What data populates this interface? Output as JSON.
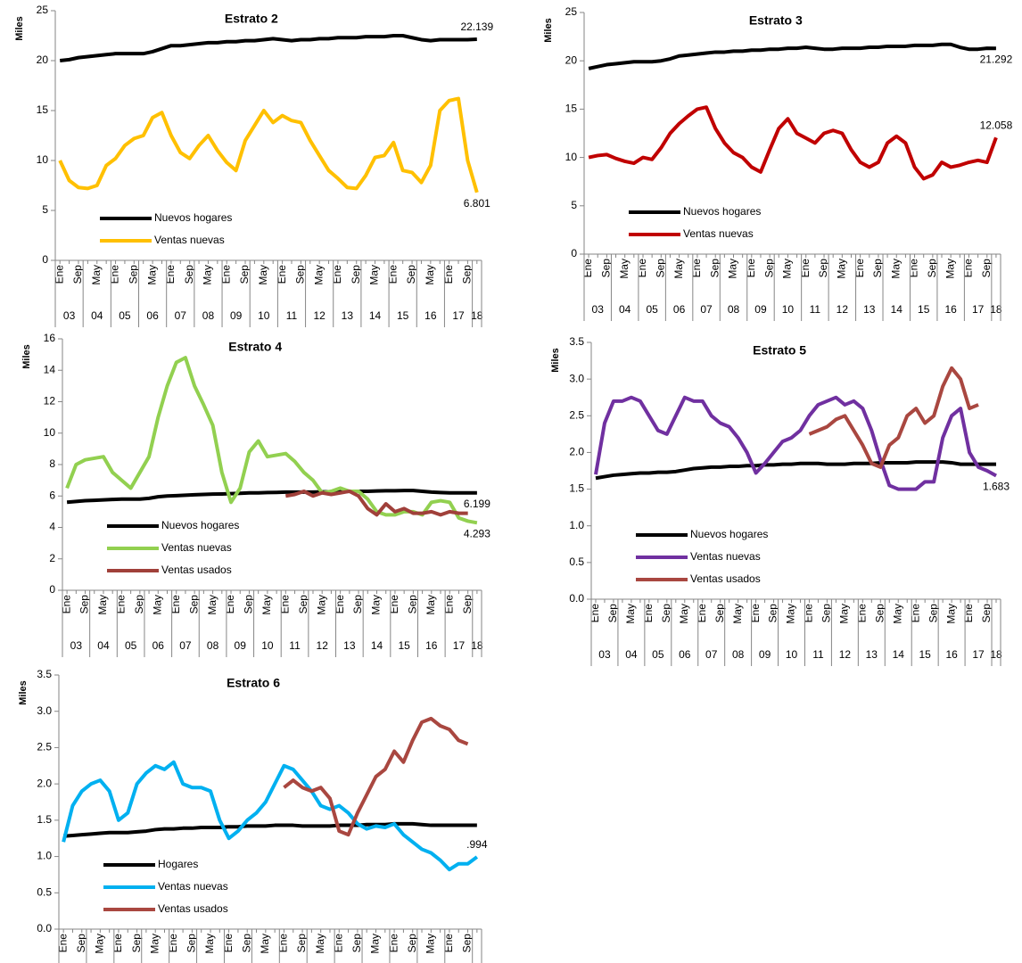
{
  "chart_data": [
    {
      "type": "line",
      "title": "Estrato 2",
      "y_label": "Miles",
      "legend": "lower left",
      "categories": [
        "Ene",
        null,
        "Sep",
        null,
        "May",
        null,
        "Ene",
        null,
        "Sep",
        null,
        "May",
        null,
        "Ene",
        null,
        "Sep",
        null,
        "May",
        null,
        "Ene",
        null,
        "Sep",
        null,
        "May",
        null,
        "Ene",
        null,
        "Sep",
        null,
        "May",
        null,
        "Ene",
        null,
        "Sep",
        null,
        "May",
        null,
        "Ene",
        null,
        "Sep",
        null,
        "May",
        null,
        "Ene",
        null,
        "Sep",
        null
      ],
      "years": [
        "03",
        "04",
        "05",
        "06",
        "07",
        "08",
        "09",
        "10",
        "11",
        "12",
        "13",
        "14",
        "15",
        "16",
        "17",
        "18"
      ],
      "ylim": [
        0,
        25
      ],
      "yticks": [
        0,
        5,
        10,
        15,
        20,
        25
      ],
      "series": [
        {
          "name": "Nuevos hogares",
          "color": "#000000",
          "label_last": true,
          "values": [
            20.0,
            20.1,
            20.3,
            20.4,
            20.5,
            20.6,
            20.7,
            20.7,
            20.7,
            20.7,
            20.9,
            21.2,
            21.5,
            21.5,
            21.6,
            21.7,
            21.8,
            21.8,
            21.9,
            21.9,
            22.0,
            22.0,
            22.1,
            22.2,
            22.1,
            22.0,
            22.1,
            22.1,
            22.2,
            22.2,
            22.3,
            22.3,
            22.3,
            22.4,
            22.4,
            22.4,
            22.5,
            22.5,
            22.3,
            22.1,
            22.0,
            22.1,
            22.1,
            22.1,
            22.1,
            22.139
          ]
        },
        {
          "name": "Ventas nuevas",
          "color": "#FFC000",
          "label_last": true,
          "values": [
            10,
            8,
            7.3,
            7.2,
            7.5,
            9.5,
            10.2,
            11.5,
            12.2,
            12.5,
            14.3,
            14.8,
            12.5,
            10.8,
            10.2,
            11.5,
            12.5,
            11,
            9.8,
            9,
            12,
            13.5,
            15,
            13.8,
            14.5,
            14,
            13.8,
            12,
            10.5,
            9,
            8.2,
            7.3,
            7.2,
            8.5,
            10.3,
            10.5,
            11.8,
            9,
            8.8,
            7.8,
            9.5,
            15,
            16,
            16.2,
            10,
            6.801
          ]
        }
      ]
    },
    {
      "type": "line",
      "title": "Estrato 3",
      "y_label": "Miles",
      "legend": "lower left",
      "categories": [
        "Ene",
        null,
        "Sep",
        null,
        "May",
        null,
        "Ene",
        null,
        "Sep",
        null,
        "May",
        null,
        "Ene",
        null,
        "Sep",
        null,
        "May",
        null,
        "Ene",
        null,
        "Sep",
        null,
        "May",
        null,
        "Ene",
        null,
        "Sep",
        null,
        "May",
        null,
        "Ene",
        null,
        "Sep",
        null,
        "May",
        null,
        "Ene",
        null,
        "Sep",
        null,
        "May",
        null,
        "Ene",
        null,
        "Sep",
        null
      ],
      "years": [
        "03",
        "04",
        "05",
        "06",
        "07",
        "08",
        "09",
        "10",
        "11",
        "12",
        "13",
        "14",
        "15",
        "16",
        "17",
        "18"
      ],
      "ylim": [
        0,
        25
      ],
      "yticks": [
        0,
        5,
        10,
        15,
        20,
        25
      ],
      "series": [
        {
          "name": "Nuevos hogares",
          "color": "#000000",
          "label_last": true,
          "values": [
            19.2,
            19.4,
            19.6,
            19.7,
            19.8,
            19.9,
            19.9,
            19.9,
            20.0,
            20.2,
            20.5,
            20.6,
            20.7,
            20.8,
            20.9,
            20.9,
            21.0,
            21.0,
            21.1,
            21.1,
            21.2,
            21.2,
            21.3,
            21.3,
            21.4,
            21.3,
            21.2,
            21.2,
            21.3,
            21.3,
            21.3,
            21.4,
            21.4,
            21.5,
            21.5,
            21.5,
            21.6,
            21.6,
            21.6,
            21.7,
            21.7,
            21.4,
            21.2,
            21.2,
            21.3,
            21.292
          ]
        },
        {
          "name": "Ventas nuevas",
          "color": "#C00000",
          "label_last": true,
          "values": [
            10,
            10.2,
            10.3,
            9.9,
            9.6,
            9.4,
            10,
            9.8,
            11,
            12.5,
            13.5,
            14.3,
            15,
            15.2,
            13,
            11.5,
            10.5,
            10,
            9,
            8.5,
            10.8,
            13,
            14,
            12.5,
            12,
            11.5,
            12.5,
            12.8,
            12.5,
            10.8,
            9.5,
            9,
            9.5,
            11.5,
            12.2,
            11.5,
            9,
            7.8,
            8.2,
            9.5,
            9,
            9.2,
            9.5,
            9.7,
            9.5,
            12.058
          ]
        }
      ]
    },
    {
      "type": "line",
      "title": "Estrato 4",
      "y_label": "Miles",
      "legend": "lower left",
      "categories": [
        "Ene",
        null,
        "Sep",
        null,
        "May",
        null,
        "Ene",
        null,
        "Sep",
        null,
        "May",
        null,
        "Ene",
        null,
        "Sep",
        null,
        "May",
        null,
        "Ene",
        null,
        "Sep",
        null,
        "May",
        null,
        "Ene",
        null,
        "Sep",
        null,
        "May",
        null,
        "Ene",
        null,
        "Sep",
        null,
        "May",
        null,
        "Ene",
        null,
        "Sep",
        null,
        "May",
        null,
        "Ene",
        null,
        "Sep",
        null
      ],
      "years": [
        "03",
        "04",
        "05",
        "06",
        "07",
        "08",
        "09",
        "10",
        "11",
        "12",
        "13",
        "14",
        "15",
        "16",
        "17",
        "18"
      ],
      "ylim": [
        0,
        16
      ],
      "yticks": [
        0,
        2,
        4,
        6,
        8,
        10,
        12,
        14,
        16
      ],
      "series": [
        {
          "name": "Nuevos hogares",
          "color": "#000000",
          "label_last": true,
          "values": [
            5.6,
            5.65,
            5.7,
            5.72,
            5.75,
            5.78,
            5.8,
            5.8,
            5.8,
            5.85,
            5.95,
            6.0,
            6.02,
            6.05,
            6.08,
            6.1,
            6.12,
            6.13,
            6.15,
            6.17,
            6.2,
            6.2,
            6.22,
            6.23,
            6.25,
            6.25,
            6.25,
            6.25,
            6.26,
            6.27,
            6.28,
            6.3,
            6.3,
            6.3,
            6.32,
            6.33,
            6.33,
            6.35,
            6.35,
            6.3,
            6.25,
            6.22,
            6.2,
            6.2,
            6.2,
            6.199
          ]
        },
        {
          "name": "Ventas nuevas",
          "color": "#92D050",
          "label_last": true,
          "values": [
            6.5,
            8.0,
            8.3,
            8.4,
            8.5,
            7.5,
            7.0,
            6.5,
            7.5,
            8.5,
            11,
            13,
            14.5,
            14.8,
            13,
            11.8,
            10.5,
            7.5,
            5.6,
            6.5,
            8.8,
            9.5,
            8.5,
            8.6,
            8.7,
            8.2,
            7.5,
            7.0,
            6.2,
            6.3,
            6.5,
            6.3,
            6.3,
            5.8,
            5.0,
            4.8,
            4.8,
            5.0,
            5.0,
            4.8,
            5.6,
            5.7,
            5.6,
            4.6,
            4.4,
            4.293
          ]
        },
        {
          "name": "Ventas usados",
          "color": "#A0403A",
          "values": [
            null,
            null,
            null,
            null,
            null,
            null,
            null,
            null,
            null,
            null,
            null,
            null,
            null,
            null,
            null,
            null,
            null,
            null,
            null,
            null,
            null,
            null,
            null,
            null,
            6.0,
            6.1,
            6.3,
            6.0,
            6.2,
            6.1,
            6.2,
            6.3,
            6.0,
            5.2,
            4.8,
            5.5,
            5.0,
            5.2,
            4.9,
            4.9,
            5.0,
            4.8,
            5.0,
            4.9,
            4.9,
            null
          ]
        }
      ]
    },
    {
      "type": "line",
      "title": "Estrato 5",
      "y_label": "Miles",
      "legend": "lower left",
      "categories": [
        "Ene",
        null,
        "Sep",
        null,
        "May",
        null,
        "Ene",
        null,
        "Sep",
        null,
        "May",
        null,
        "Ene",
        null,
        "Sep",
        null,
        "May",
        null,
        "Ene",
        null,
        "Sep",
        null,
        "May",
        null,
        "Ene",
        null,
        "Sep",
        null,
        "May",
        null,
        "Ene",
        null,
        "Sep",
        null,
        "May",
        null,
        "Ene",
        null,
        "Sep",
        null,
        "May",
        null,
        "Ene",
        null,
        "Sep",
        null
      ],
      "years": [
        "03",
        "04",
        "05",
        "06",
        "07",
        "08",
        "09",
        "10",
        "11",
        "12",
        "13",
        "14",
        "15",
        "16",
        "17",
        "18"
      ],
      "ylim": [
        0,
        3.5
      ],
      "yticks": [
        {
          "value": 0,
          "label": "0.0"
        },
        0.5,
        {
          "value": 1,
          "label": "1.0"
        },
        1.5,
        {
          "value": 2,
          "label": "2.0"
        },
        2.5,
        {
          "value": 3,
          "label": "3.0"
        },
        3.5
      ],
      "series": [
        {
          "name": "Nuevos hogares",
          "color": "#000000",
          "values": [
            1.65,
            1.67,
            1.69,
            1.7,
            1.71,
            1.72,
            1.72,
            1.73,
            1.73,
            1.74,
            1.76,
            1.78,
            1.79,
            1.8,
            1.8,
            1.81,
            1.81,
            1.82,
            1.82,
            1.83,
            1.83,
            1.84,
            1.84,
            1.85,
            1.85,
            1.85,
            1.84,
            1.84,
            1.84,
            1.85,
            1.85,
            1.85,
            1.86,
            1.86,
            1.86,
            1.86,
            1.87,
            1.87,
            1.87,
            1.87,
            1.86,
            1.84,
            1.84,
            1.84,
            1.84,
            1.84
          ]
        },
        {
          "name": "Ventas nuevas",
          "color": "#7030A0",
          "label_last": true,
          "values": [
            1.7,
            2.4,
            2.7,
            2.7,
            2.75,
            2.7,
            2.5,
            2.3,
            2.25,
            2.5,
            2.75,
            2.7,
            2.7,
            2.5,
            2.4,
            2.35,
            2.2,
            2.0,
            1.72,
            1.85,
            2.0,
            2.15,
            2.2,
            2.3,
            2.5,
            2.65,
            2.7,
            2.75,
            2.65,
            2.7,
            2.6,
            2.3,
            1.9,
            1.55,
            1.5,
            1.5,
            1.5,
            1.6,
            1.6,
            2.2,
            2.5,
            2.6,
            2.0,
            1.8,
            1.75,
            1.683
          ]
        },
        {
          "name": "Ventas usados",
          "color": "#A94740",
          "values": [
            null,
            null,
            null,
            null,
            null,
            null,
            null,
            null,
            null,
            null,
            null,
            null,
            null,
            null,
            null,
            null,
            null,
            null,
            null,
            null,
            null,
            null,
            null,
            null,
            2.25,
            2.3,
            2.35,
            2.45,
            2.5,
            2.3,
            2.1,
            1.85,
            1.8,
            2.1,
            2.2,
            2.5,
            2.6,
            2.4,
            2.5,
            2.9,
            3.15,
            3.0,
            2.6,
            2.65,
            null,
            null
          ]
        }
      ]
    },
    {
      "type": "line",
      "title": "Estrato 6",
      "y_label": "Miles",
      "legend": "lower left",
      "categories": [
        "Ene",
        null,
        "Sep",
        null,
        "May",
        null,
        "Ene",
        null,
        "Sep",
        null,
        "May",
        null,
        "Ene",
        null,
        "Sep",
        null,
        "May",
        null,
        "Ene",
        null,
        "Sep",
        null,
        "May",
        null,
        "Ene",
        null,
        "Sep",
        null,
        "May",
        null,
        "Ene",
        null,
        "Sep",
        null,
        "May",
        null,
        "Ene",
        null,
        "Sep",
        null,
        "May",
        null,
        "Ene",
        null,
        "Sep",
        null
      ],
      "years": [
        "03",
        "04",
        "05",
        "06",
        "07",
        "08",
        "09",
        "10",
        "11",
        "12",
        "13",
        "14",
        "15",
        "16",
        "17",
        "18"
      ],
      "ylim": [
        0,
        3.5
      ],
      "yticks": [
        {
          "value": 0,
          "label": "0.0"
        },
        0.5,
        {
          "value": 1,
          "label": "1.0"
        },
        1.5,
        {
          "value": 2,
          "label": "2.0"
        },
        2.5,
        {
          "value": 3,
          "label": "3.0"
        },
        3.5
      ],
      "series": [
        {
          "name": "Hogares",
          "color": "#000000",
          "values": [
            1.28,
            1.29,
            1.3,
            1.31,
            1.32,
            1.33,
            1.33,
            1.33,
            1.34,
            1.35,
            1.37,
            1.38,
            1.38,
            1.39,
            1.39,
            1.4,
            1.4,
            1.4,
            1.41,
            1.41,
            1.42,
            1.42,
            1.42,
            1.43,
            1.43,
            1.43,
            1.42,
            1.42,
            1.42,
            1.42,
            1.43,
            1.43,
            1.43,
            1.44,
            1.44,
            1.44,
            1.45,
            1.45,
            1.45,
            1.44,
            1.43,
            1.43,
            1.43,
            1.43,
            1.43,
            1.43
          ]
        },
        {
          "name": "Ventas nuevas",
          "color": "#00B0F0",
          "values": [
            1.2,
            1.7,
            1.9,
            2.0,
            2.05,
            1.9,
            1.5,
            1.6,
            2.0,
            2.15,
            2.25,
            2.2,
            2.3,
            2.0,
            1.95,
            1.95,
            1.9,
            1.5,
            1.25,
            1.35,
            1.5,
            1.6,
            1.75,
            2.0,
            2.25,
            2.2,
            2.05,
            1.9,
            1.7,
            1.65,
            1.7,
            1.6,
            1.45,
            1.38,
            1.42,
            1.4,
            1.45,
            1.3,
            1.2,
            1.1,
            1.05,
            0.95,
            0.82,
            0.9,
            0.9,
            0.994
          ],
          "value_labels": [
            null,
            null,
            null,
            null,
            null,
            null,
            null,
            null,
            null,
            null,
            null,
            null,
            null,
            null,
            null,
            null,
            null,
            null,
            null,
            null,
            null,
            null,
            null,
            null,
            null,
            null,
            null,
            null,
            null,
            null,
            null,
            null,
            null,
            null,
            null,
            null,
            null,
            null,
            null,
            null,
            null,
            null,
            null,
            null,
            null,
            ".994"
          ]
        },
        {
          "name": "Ventas usados",
          "color": "#A94740",
          "values": [
            null,
            null,
            null,
            null,
            null,
            null,
            null,
            null,
            null,
            null,
            null,
            null,
            null,
            null,
            null,
            null,
            null,
            null,
            null,
            null,
            null,
            null,
            null,
            null,
            1.95,
            2.05,
            1.95,
            1.9,
            1.95,
            1.8,
            1.35,
            1.3,
            1.6,
            1.85,
            2.1,
            2.2,
            2.45,
            2.3,
            2.6,
            2.85,
            2.9,
            2.8,
            2.75,
            2.6,
            2.55,
            null
          ]
        }
      ]
    }
  ]
}
